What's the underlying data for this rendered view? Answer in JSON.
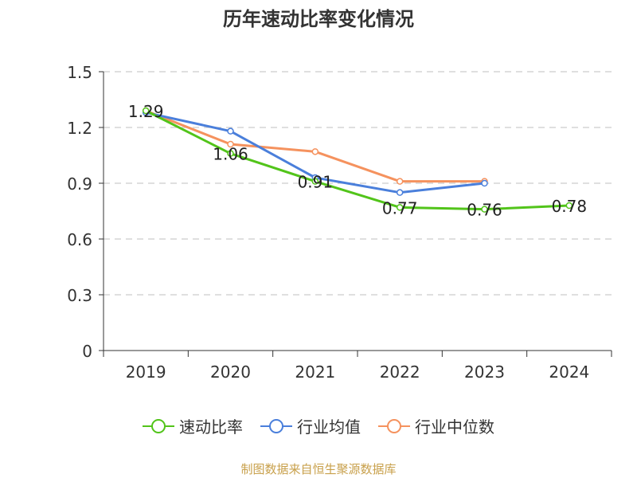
{
  "chart_data": {
    "type": "line",
    "title": "历年速动比率变化情况",
    "categories": [
      "2019",
      "2020",
      "2021",
      "2022",
      "2023",
      "2024"
    ],
    "ylim": [
      0,
      1.5
    ],
    "yticks": [
      "0",
      "0.3",
      "0.6",
      "0.9",
      "1.2",
      "1.5"
    ],
    "grid": true,
    "legend_position": "bottom",
    "series": [
      {
        "name": "速动比率",
        "color": "#52c41a",
        "values": [
          1.29,
          1.06,
          0.91,
          0.77,
          0.76,
          0.78
        ],
        "labels": [
          "1.29",
          "1.06",
          "0.91",
          "0.77",
          "0.76",
          "0.78"
        ]
      },
      {
        "name": "行业均值",
        "color": "#4a7fdb",
        "values": [
          1.28,
          1.18,
          0.93,
          0.85,
          0.9,
          null
        ]
      },
      {
        "name": "行业中位数",
        "color": "#f5925e",
        "values": [
          1.29,
          1.11,
          1.07,
          0.91,
          0.91,
          null
        ]
      }
    ],
    "source": "制图数据来自恒生聚源数据库"
  }
}
